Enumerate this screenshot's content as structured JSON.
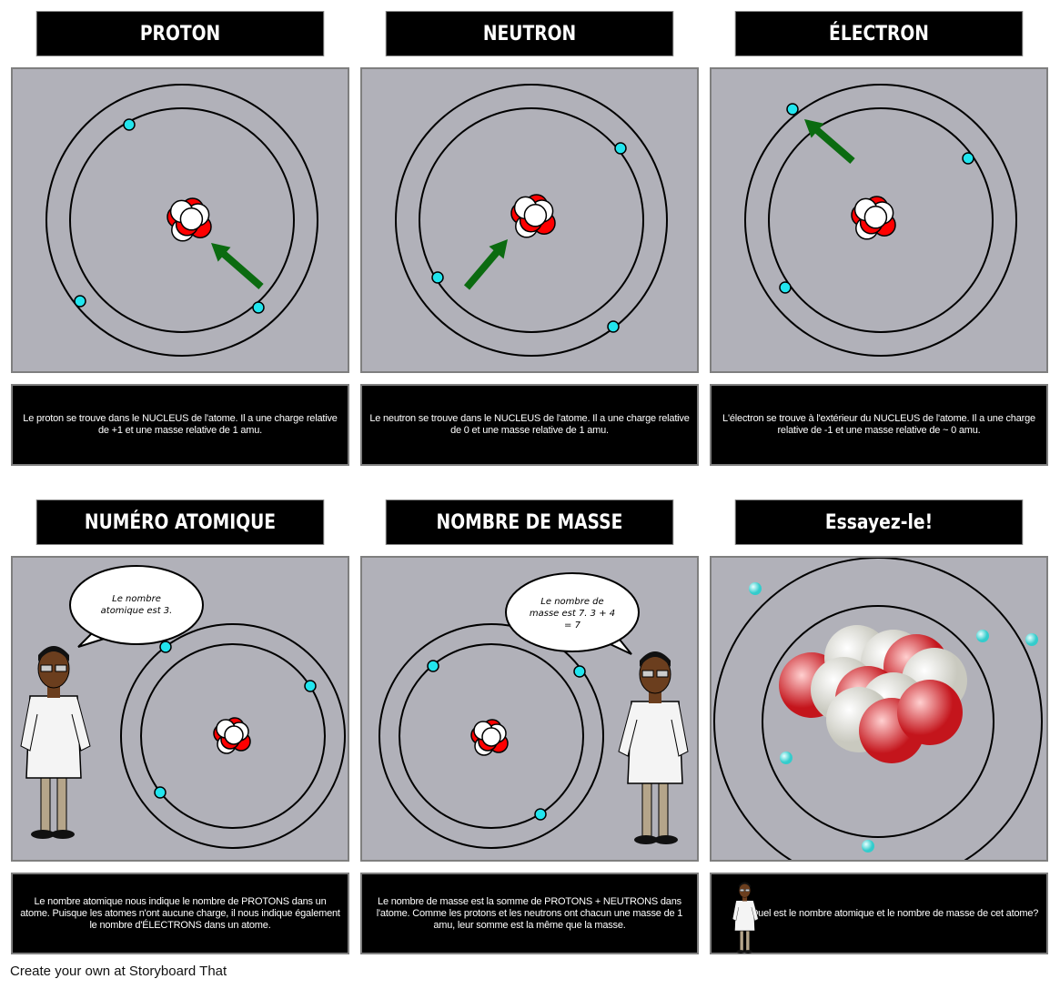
{
  "panels": [
    {
      "title": "PROTON",
      "caption": "Le proton se trouve dans le NUCLEUS de l'atome. Il a une charge relative de +1 et une masse relative de 1 amu."
    },
    {
      "title": "NEUTRON",
      "caption": "Le neutron se trouve dans le NUCLEUS de l'atome. Il a une charge relative de 0 et une masse relative de 1 amu."
    },
    {
      "title": "ÉLECTRON",
      "caption": "L'électron se trouve à l'extérieur du NUCLEUS de l'atome. Il a une charge relative de -1 et une masse relative de ~ 0 amu."
    },
    {
      "title": "NUMÉRO ATOMIQUE",
      "caption": "Le nombre atomique nous indique le nombre de PROTONS dans un atome. Puisque les atomes n'ont aucune charge, il nous indique également le nombre d'ÉLECTRONS dans un atome.",
      "bubble": [
        "Le nombre",
        "atomique est 3."
      ]
    },
    {
      "title": "NOMBRE DE MASSE",
      "caption": "Le nombre de masse est la somme de PROTONS + NEUTRONS dans l'atome. Comme les protons et les neutrons ont chacun une masse de 1 amu, leur somme est la même que la masse.",
      "bubble": [
        "Le nombre de",
        "masse est 7. 3 + 4",
        "= 7"
      ]
    },
    {
      "title": "Essayez-le!",
      "caption": "Quel est le nombre atomique et le nombre de masse de cet atome?"
    }
  ],
  "footer": "Create your own at Storyboard That",
  "colors": {
    "proton": "#ff0000",
    "neutron": "#ffffff",
    "electron": "#22e5ee",
    "arrow": "#0b6b10",
    "background": "#b1b1b9"
  }
}
